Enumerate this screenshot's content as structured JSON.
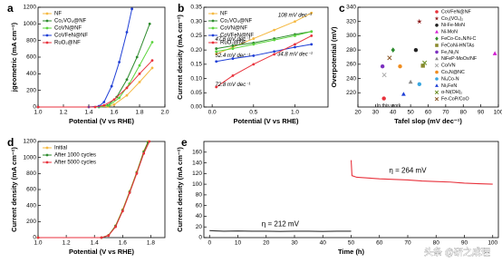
{
  "chart_data": [
    {
      "panel": "a",
      "type": "line",
      "markers": true,
      "legend": "upper left",
      "xlabel": "Potential (V vs RHE)",
      "ylabel": "jgeometric (mA cm⁻²)",
      "xlim": [
        1.0,
        2.0
      ],
      "xticks": [
        {
          "value": 1.0,
          "label": "1.0"
        },
        1.2,
        1.4,
        1.6,
        1.8,
        {
          "value": 2.0,
          "label": "2.0"
        }
      ],
      "ylim": [
        0,
        1200
      ],
      "yticks": [
        0,
        200,
        400,
        600,
        800,
        1000,
        1200
      ],
      "series": [
        {
          "name": "NF",
          "color": "#f5b942",
          "x": [
            1.0,
            1.4,
            1.55,
            1.6,
            1.7,
            1.8,
            1.9
          ],
          "values": [
            0,
            0,
            5,
            30,
            140,
            300,
            470
          ]
        },
        {
          "name": "Co₂VO₄@NF",
          "color": "#2e8b2e",
          "x": [
            1.0,
            1.48,
            1.55,
            1.62,
            1.7,
            1.78,
            1.88
          ],
          "values": [
            0,
            0,
            20,
            120,
            330,
            600,
            1000
          ]
        },
        {
          "name": "CoVN@NF",
          "color": "#5ad43c",
          "x": [
            1.0,
            1.48,
            1.56,
            1.64,
            1.72,
            1.8,
            1.9
          ],
          "values": [
            0,
            0,
            20,
            110,
            280,
            500,
            780
          ]
        },
        {
          "name": "CoVFeN@NF",
          "color": "#1f3fd6",
          "x": [
            1.0,
            1.4,
            1.48,
            1.52,
            1.58,
            1.64,
            1.7,
            1.74
          ],
          "values": [
            0,
            0,
            10,
            60,
            250,
            540,
            900,
            1180
          ]
        },
        {
          "name": "RuO₂@NF",
          "color": "#e8323c",
          "x": [
            1.0,
            1.45,
            1.52,
            1.6,
            1.7,
            1.8,
            1.9
          ],
          "values": [
            0,
            0,
            20,
            90,
            230,
            400,
            560
          ]
        }
      ]
    },
    {
      "panel": "b",
      "type": "line",
      "markers": true,
      "legend": "upper left",
      "xlabel": "Potential (V vs RHE)",
      "ylabel": "Current density (mA cm⁻²)",
      "xlim": [
        -0.1,
        1.4
      ],
      "xticks": [
        {
          "value": 0.0,
          "label": "0.0"
        },
        0.5,
        {
          "value": 1.0,
          "label": "1.0"
        }
      ],
      "ylim": [
        0.0,
        0.35
      ],
      "yticks": [
        {
          "value": 0.0,
          "label": "0.00"
        },
        0.05,
        {
          "value": 0.1,
          "label": "0.10"
        },
        0.15,
        {
          "value": 0.2,
          "label": "0.20"
        },
        0.25,
        {
          "value": 0.3,
          "label": "0.30"
        },
        0.35
      ],
      "series": [
        {
          "name": "NF",
          "color": "#f5b942",
          "label": "108 mV dec⁻¹",
          "x": [
            0.05,
            0.25,
            0.5,
            0.75,
            1.0,
            1.2
          ],
          "values": [
            0.186,
            0.21,
            0.24,
            0.27,
            0.3,
            0.33
          ]
        },
        {
          "name": "Co₂VO₄@NF",
          "color": "#2e8b2e",
          "label": "47.6 mV dec⁻¹",
          "x": [
            0.05,
            0.25,
            0.5,
            0.75,
            1.0,
            1.2
          ],
          "values": [
            0.205,
            0.215,
            0.225,
            0.24,
            0.255,
            0.265
          ]
        },
        {
          "name": "CoVN@NF",
          "color": "#5ad43c",
          "label": "52.4 mV dec⁻¹",
          "x": [
            0.05,
            0.25,
            0.5,
            0.75,
            1.0,
            1.2
          ],
          "values": [
            0.195,
            0.205,
            0.22,
            0.235,
            0.25,
            0.265
          ]
        },
        {
          "name": "CoVFeN@NF",
          "color": "#1f3fd6",
          "label": "34.8 mV dec⁻¹",
          "x": [
            0.05,
            0.25,
            0.5,
            0.75,
            1.0,
            1.2
          ],
          "values": [
            0.16,
            0.17,
            0.18,
            0.195,
            0.21,
            0.22
          ]
        },
        {
          "name": "RuO₂@NF",
          "color": "#e8323c",
          "label": "72.8 mV dec⁻¹",
          "x": [
            0.05,
            0.25,
            0.5,
            0.75,
            1.0,
            1.2
          ],
          "values": [
            0.07,
            0.11,
            0.15,
            0.185,
            0.22,
            0.25
          ]
        }
      ]
    },
    {
      "panel": "c",
      "type": "scatter",
      "legend": "right",
      "annotation": "In this work",
      "xlabel": "Tafel slop (mV dec⁻¹)",
      "ylabel": "Overpotential (mV)",
      "xlim": [
        20,
        100
      ],
      "xticks": [
        20,
        30,
        40,
        50,
        60,
        70,
        80,
        90,
        100
      ],
      "ylim": [
        200,
        340
      ],
      "yticks": [
        220,
        240,
        260,
        280,
        300,
        320,
        340
      ],
      "series": [
        {
          "name": "CoVFeN@NF",
          "color": "#e8323c",
          "marker": "circle",
          "x": [
            34.8
          ],
          "values": [
            212
          ]
        },
        {
          "name": "Co₃(VO₄)₂",
          "color": "#8b1a1a",
          "marker": "star",
          "x": [
            55
          ],
          "values": [
            320
          ]
        },
        {
          "name": "Ni-Fe-MoN",
          "color": "#222222",
          "marker": "circle",
          "x": [
            53
          ],
          "values": [
            280
          ]
        },
        {
          "name": "Ni-MoN",
          "color": "#d21fd2",
          "marker": "triangle",
          "x": [
            98
          ],
          "values": [
            275
          ]
        },
        {
          "name": "FeCo-Co₄N/N-C",
          "color": "#2e8b2e",
          "marker": "diamond",
          "x": [
            40
          ],
          "values": [
            280
          ]
        },
        {
          "name": "FeCoNi-HNTAs",
          "color": "#8a8a2e",
          "marker": "square",
          "x": [
            57
          ],
          "values": [
            258
          ]
        },
        {
          "name": "Fe₂Ni₂N",
          "color": "#7b2fbf",
          "marker": "circle",
          "x": [
            34
          ],
          "values": [
            257
          ]
        },
        {
          "name": "NiFeP-MoOx/NF",
          "color": "#888888",
          "marker": "triangle",
          "x": [
            50
          ],
          "values": [
            235
          ]
        },
        {
          "name": "Co/VN",
          "color": "#aaaaaa",
          "marker": "cross",
          "x": [
            35
          ],
          "values": [
            245
          ]
        },
        {
          "name": "Co₄N@NC",
          "color": "#f08c1e",
          "marker": "circle",
          "x": [
            44
          ],
          "values": [
            257
          ]
        },
        {
          "name": "Ni₃Co-N",
          "color": "#3aa7e0",
          "marker": "circle",
          "x": [
            55
          ],
          "values": [
            232
          ]
        },
        {
          "name": "Ni₃FeN",
          "color": "#1f3fd6",
          "marker": "triangle",
          "x": [
            46
          ],
          "values": [
            218
          ]
        },
        {
          "name": "α-Ni(OH)₂",
          "color": "#6b8e23",
          "marker": "cross",
          "x": [
            58
          ],
          "values": [
            262
          ]
        },
        {
          "name": "Fe-CoP/CoO",
          "color": "#8b5a2b",
          "marker": "cross",
          "x": [
            38
          ],
          "values": [
            269
          ]
        }
      ]
    },
    {
      "panel": "d",
      "type": "line",
      "markers": true,
      "legend": "upper left",
      "xlabel": "Potential (V vs RHE)",
      "ylabel": "Current density (mA cm⁻²)",
      "xlim": [
        1.0,
        1.9
      ],
      "xticks": [
        {
          "value": 1.0,
          "label": "1.0"
        },
        1.2,
        1.4,
        1.6,
        1.8
      ],
      "ylim": [
        0,
        1200
      ],
      "yticks": [
        0,
        200,
        400,
        600,
        800,
        1000,
        1200
      ],
      "series": [
        {
          "name": "Initial",
          "color": "#f5b942",
          "x": [
            1.0,
            1.45,
            1.5,
            1.55,
            1.6,
            1.65,
            1.7,
            1.75,
            1.78
          ],
          "values": [
            0,
            0,
            30,
            150,
            350,
            580,
            820,
            1080,
            1200
          ]
        },
        {
          "name": "After 1000 cycles",
          "color": "#2e8b2e",
          "x": [
            1.0,
            1.45,
            1.5,
            1.55,
            1.6,
            1.65,
            1.7,
            1.75,
            1.78
          ],
          "values": [
            0,
            0,
            28,
            145,
            340,
            570,
            810,
            1070,
            1190
          ]
        },
        {
          "name": "After 5000 cycles",
          "color": "#e8323c",
          "x": [
            1.0,
            1.45,
            1.5,
            1.55,
            1.6,
            1.65,
            1.7,
            1.75,
            1.79
          ],
          "values": [
            0,
            0,
            25,
            135,
            330,
            560,
            800,
            1050,
            1200
          ]
        }
      ]
    },
    {
      "panel": "e",
      "type": "line",
      "markers": false,
      "xlabel": "Time (h)",
      "ylabel": "Current density (mA cm⁻²)",
      "xlim": [
        -2,
        102
      ],
      "xticks": [
        0,
        10,
        20,
        30,
        40,
        50,
        60,
        70,
        80,
        90,
        100
      ],
      "ylim": [
        0,
        180
      ],
      "yticks": [
        0,
        20,
        40,
        60,
        80,
        100,
        120,
        140,
        160
      ],
      "series": [
        {
          "color": "#333333",
          "label": "η = 212 mV",
          "x": [
            0,
            5,
            10,
            15,
            20,
            25,
            30,
            35,
            40,
            45,
            50
          ],
          "values": [
            13,
            12,
            12.5,
            12,
            12,
            11.5,
            12,
            12,
            11.5,
            12,
            12
          ]
        },
        {
          "color": "#e8323c",
          "label": "η = 264 mV",
          "x": [
            50,
            50.3,
            52,
            55,
            60,
            65,
            70,
            75,
            80,
            85,
            90,
            95,
            100
          ],
          "values": [
            145,
            116,
            113,
            112,
            110,
            109,
            108,
            106,
            105,
            104,
            102,
            101,
            100
          ]
        }
      ]
    }
  ],
  "watermark": "头条 @研之成理"
}
